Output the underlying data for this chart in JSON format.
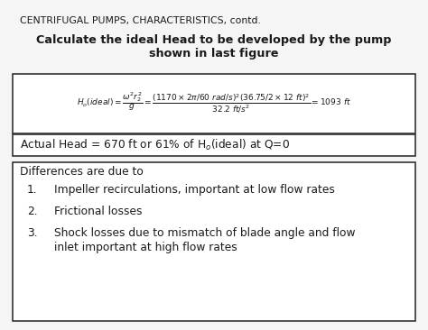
{
  "title": "CENTRIFUGAL PUMPS, CHARACTERISTICS, contd.",
  "subtitle_line1": "Calculate the ideal Head to be developed by the pump",
  "subtitle_line2": "shown in last figure",
  "actual_head_text": "Actual Head = 670 ft or 61% of H",
  "actual_head_sub": "o",
  "actual_head_tail": "(ideal) at Q=0",
  "differences_title": "Differences are due to",
  "item1": "Impeller recirculations, important at low flow rates",
  "item2": "Frictional losses",
  "item3a": "Shock losses due to mismatch of blade angle and flow",
  "item3b": "inlet important at high flow rates",
  "bg_color": "#f5f5f5",
  "text_color": "#1a1a1a",
  "box_edge_color": "#333333",
  "title_fontsize": 7.8,
  "subtitle_fontsize": 9.2,
  "formula_fontsize": 6.5,
  "body_fontsize": 8.8
}
